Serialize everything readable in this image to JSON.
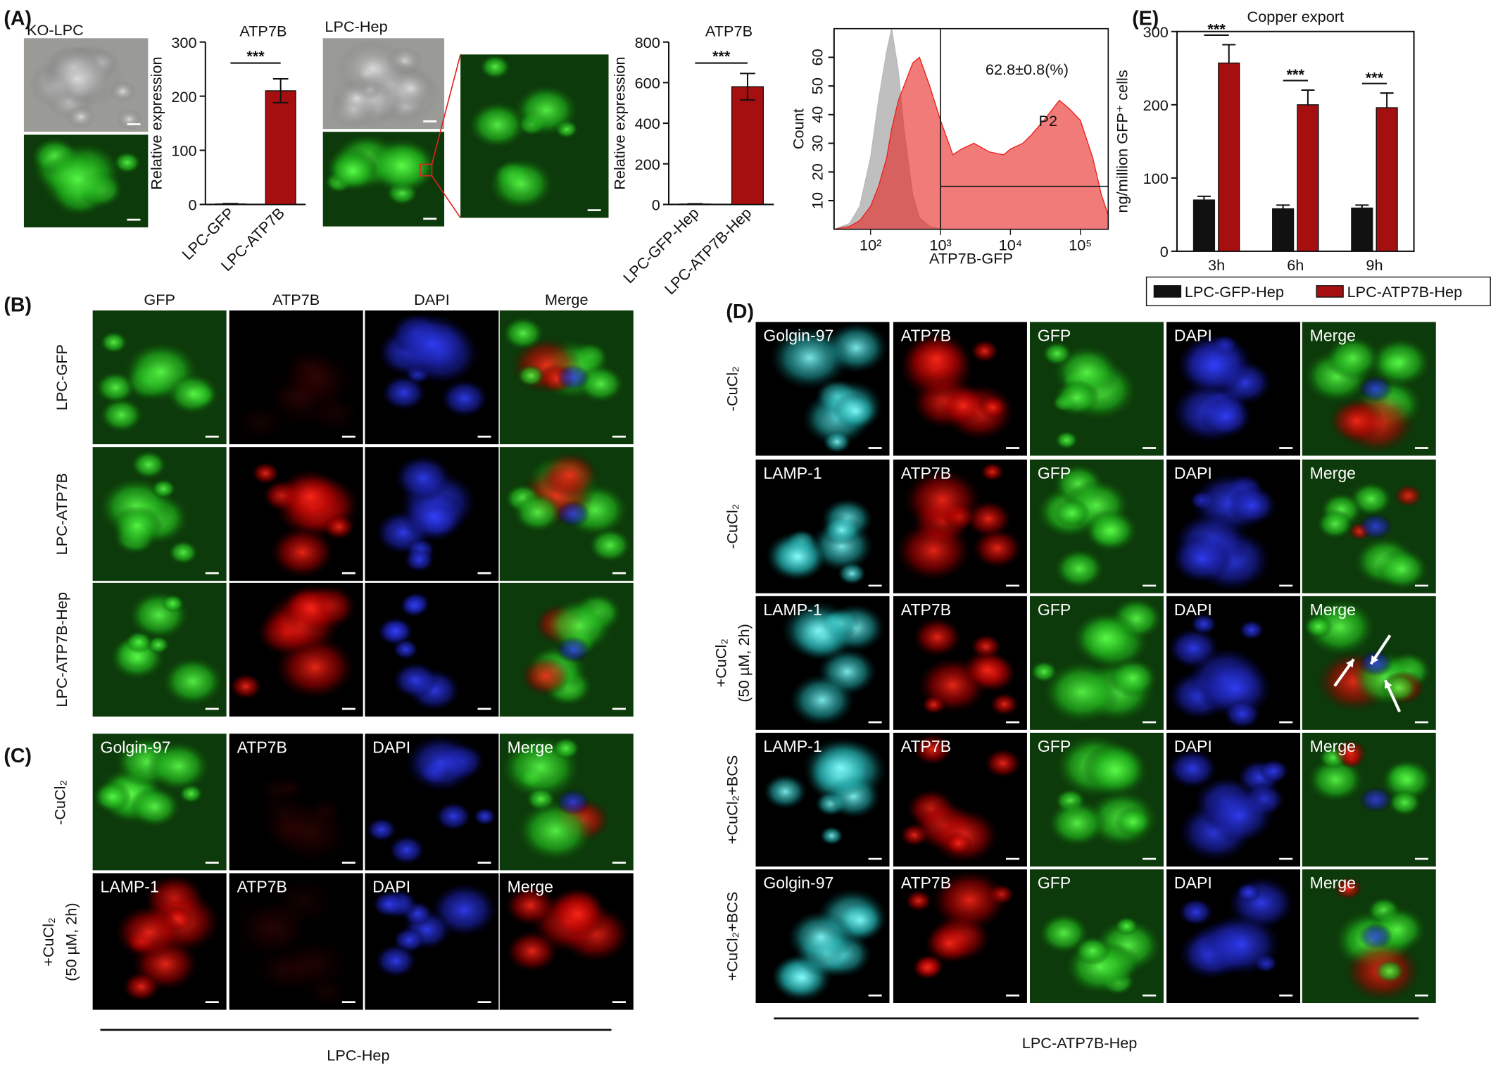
{
  "chart_data": [
    {
      "type": "bar",
      "title": "ATP7B",
      "ylabel": "Relative expression",
      "categories": [
        "LPC-GFP",
        "LPC-ATP7B"
      ],
      "values": [
        1,
        210
      ],
      "errors": [
        0.5,
        22
      ],
      "color": "#a50f0f",
      "significance": "***",
      "ylim": [
        0,
        300
      ],
      "yticks": [
        0,
        100,
        200,
        300
      ]
    },
    {
      "type": "bar",
      "title": "ATP7B",
      "ylabel": "Relative expression",
      "categories": [
        "LPC-GFP-Hep",
        "LPC-ATP7B-Hep"
      ],
      "values": [
        2,
        580
      ],
      "errors": [
        1,
        65
      ],
      "color": "#a50f0f",
      "significance": "***",
      "ylim": [
        0,
        800
      ],
      "yticks": [
        0,
        200,
        400,
        600,
        800
      ]
    },
    {
      "type": "area",
      "xscale": "log",
      "xlabel": "ATP7B-GFP",
      "ylabel": "Count",
      "annotation": "62.8±0.8(%)",
      "gate_label": "P2",
      "gate_x": 1000,
      "gate_y": 15,
      "x": [
        30,
        50,
        70,
        100,
        130,
        170,
        200,
        250,
        300,
        400,
        500,
        700,
        1000,
        1500,
        2000,
        3000,
        5000,
        8000,
        10000,
        15000,
        20000,
        30000,
        50000,
        70000,
        100000,
        150000,
        200000,
        250000
      ],
      "series": [
        {
          "color": "#b8b8b8",
          "values": [
            0,
            2,
            8,
            25,
            45,
            62,
            70,
            55,
            35,
            12,
            4,
            1,
            0,
            0,
            0,
            0,
            0,
            0,
            0,
            0,
            0,
            0,
            0,
            0,
            0,
            0,
            0,
            0
          ]
        },
        {
          "color": "#e8231f",
          "values": [
            0,
            1,
            3,
            8,
            15,
            25,
            35,
            45,
            50,
            58,
            60,
            50,
            38,
            26,
            28,
            30,
            27,
            26,
            28,
            30,
            33,
            38,
            45,
            42,
            38,
            25,
            12,
            5
          ]
        }
      ],
      "xlim": [
        30,
        250000
      ],
      "ylim": [
        0,
        70
      ],
      "xticks": [
        {
          "value": 100,
          "label": "10²"
        },
        {
          "value": 1000,
          "label": "10³"
        },
        {
          "value": 10000,
          "label": "10⁴"
        },
        {
          "value": 100000,
          "label": "10⁵"
        }
      ],
      "yticks": [
        10,
        20,
        30,
        40,
        50,
        60
      ]
    },
    {
      "type": "grouped_bar",
      "title": "Copper export",
      "ylabel": "ng/million GFP⁺ cells",
      "categories": [
        "3h",
        "6h",
        "9h"
      ],
      "series": [
        {
          "name": "LPC-GFP-Hep",
          "color": "#111111",
          "values": [
            70,
            58,
            59
          ],
          "errors": [
            5,
            5,
            4
          ]
        },
        {
          "name": "LPC-ATP7B-Hep",
          "color": "#a50f0f",
          "values": [
            257,
            200,
            196
          ],
          "errors": [
            25,
            20,
            20
          ]
        }
      ],
      "significance": [
        "***",
        "***",
        "***"
      ],
      "ylim": [
        0,
        300
      ],
      "yticks": [
        0,
        100,
        200,
        300
      ]
    }
  ],
  "panels": {
    "A": {
      "label": "(A)",
      "images": [
        "KO-LPC",
        "LPC-Hep"
      ]
    },
    "B": {
      "label": "(B)",
      "columns": [
        "GFP",
        "ATP7B",
        "DAPI",
        "Merge"
      ],
      "rows": [
        "LPC-GFP",
        "LPC-ATP7B",
        "LPC-ATP7B-Hep"
      ]
    },
    "C": {
      "label": "(C)",
      "rows": [
        [
          "-CuCl₂"
        ],
        [
          "+CuCl₂",
          "(50 µM, 2h)"
        ]
      ],
      "cells": [
        [
          "Golgin-97",
          "ATP7B",
          "DAPI",
          "Merge"
        ],
        [
          "LAMP-1",
          "ATP7B",
          "DAPI",
          "Merge"
        ]
      ],
      "footer": "LPC-Hep"
    },
    "D": {
      "label": "(D)",
      "rows": [
        [
          "-CuCl₂"
        ],
        [
          "-CuCl₂"
        ],
        [
          "+CuCl₂",
          "(50 µM, 2h)"
        ],
        [
          "+CuCl₂+BCS"
        ],
        [
          "+CuCl₂+BCS"
        ]
      ],
      "cells": [
        [
          "Golgin-97",
          "ATP7B",
          "GFP",
          "DAPI",
          "Merge"
        ],
        [
          "LAMP-1",
          "ATP7B",
          "GFP",
          "DAPI",
          "Merge"
        ],
        [
          "LAMP-1",
          "ATP7B",
          "GFP",
          "DAPI",
          "Merge"
        ],
        [
          "LAMP-1",
          "ATP7B",
          "GFP",
          "DAPI",
          "Merge"
        ],
        [
          "Golgin-97",
          "ATP7B",
          "GFP",
          "DAPI",
          "Merge"
        ]
      ],
      "footer": "LPC-ATP7B-Hep"
    },
    "E": {
      "label": "(E)"
    }
  }
}
